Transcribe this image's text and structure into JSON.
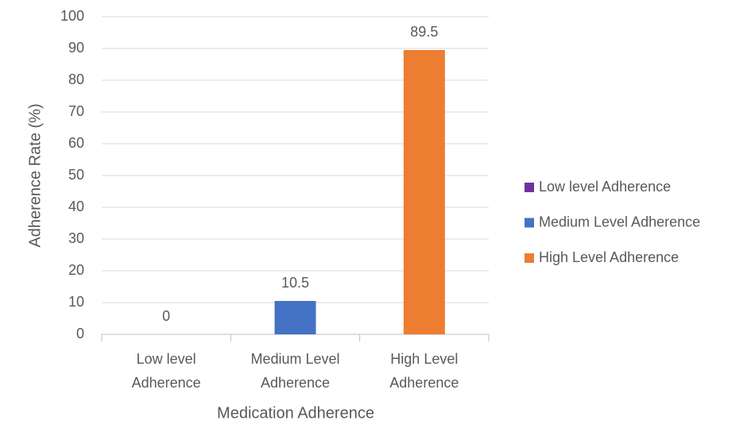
{
  "chart_data": {
    "type": "bar",
    "x_label": "Medication Adherence",
    "y_label": "Adherence Rate (%)",
    "categories": [
      "Low level Adherence",
      "Medium Level Adherence",
      "High Level Adherence"
    ],
    "values": [
      0,
      10.5,
      89.5
    ],
    "colors": [
      "#7030a0",
      "#4472c4",
      "#ed7d31"
    ],
    "ylim": [
      0,
      100
    ],
    "yticks": [
      0,
      10,
      20,
      30,
      40,
      50,
      60,
      70,
      80,
      90,
      100
    ],
    "grid": true,
    "legend": "right"
  }
}
